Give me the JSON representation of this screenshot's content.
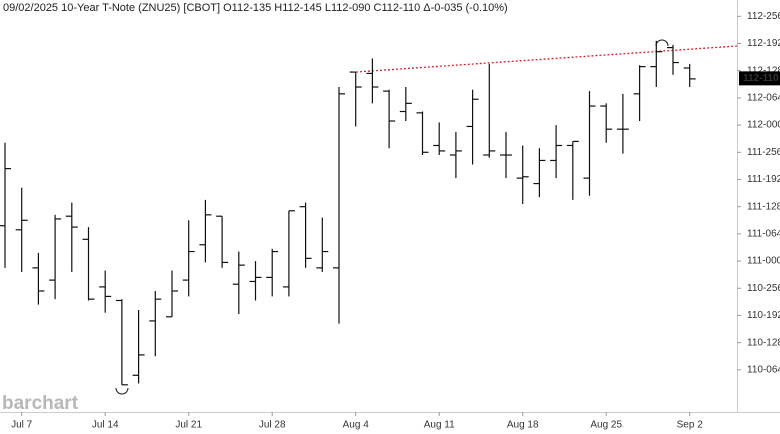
{
  "chart_data": {
    "type": "ohlc",
    "title": "09/02/2025 10-Year T-Note (ZNU25) [CBOT] O112-135 H112-145 L112-090 C112-110 Δ-0-035 (-0.10%)",
    "watermark": "barchart",
    "categories": [
      null,
      "Jul 7",
      null,
      null,
      null,
      null,
      "Jul 14",
      null,
      null,
      null,
      null,
      "Jul 21",
      null,
      null,
      null,
      null,
      "Jul 28",
      null,
      null,
      null,
      null,
      "Aug 4",
      null,
      null,
      null,
      null,
      "Aug 11",
      null,
      null,
      null,
      null,
      "Aug 18",
      null,
      null,
      null,
      null,
      "Aug 25",
      null,
      null,
      null,
      null,
      "Sep 2"
    ],
    "open": [
      111.26,
      111.23,
      110.95,
      110.86,
      111.33,
      111.16,
      110.81,
      110.71,
      110.16,
      110.56,
      110.59,
      110.86,
      111.12,
      111.33,
      110.83,
      110.85,
      110.88,
      110.81,
      111.4,
      110.95,
      110.95,
      112.39,
      112.38,
      112.25,
      112.1,
      112.09,
      111.85,
      111.78,
      111.99,
      111.78,
      111.78,
      111.61,
      111.57,
      111.74,
      111.85,
      111.61,
      112.14,
      111.97,
      112.23,
      112.43,
      112.57,
      112.42
    ],
    "high": [
      111.87,
      111.54,
      111.06,
      111.34,
      111.43,
      111.25,
      110.93,
      110.72,
      110.64,
      110.78,
      110.93,
      111.3,
      111.45,
      111.33,
      111.07,
      111.0,
      111.09,
      111.37,
      111.43,
      111.32,
      112.28,
      112.39,
      112.49,
      112.26,
      112.28,
      112.1,
      112.02,
      111.95,
      112.26,
      112.45,
      111.95,
      111.85,
      111.83,
      112.0,
      111.88,
      112.25,
      112.16,
      112.23,
      112.44,
      112.62,
      112.59,
      112.45
    ],
    "low": [
      110.95,
      110.92,
      110.68,
      110.72,
      110.92,
      110.71,
      110.62,
      110.09,
      110.1,
      110.3,
      110.59,
      110.74,
      110.99,
      110.95,
      110.61,
      110.71,
      110.74,
      110.74,
      110.95,
      110.92,
      110.54,
      111.99,
      112.16,
      111.83,
      112.03,
      111.78,
      111.78,
      111.61,
      111.71,
      111.76,
      111.61,
      111.42,
      111.47,
      111.61,
      111.45,
      111.48,
      111.87,
      111.79,
      112.03,
      112.28,
      112.37,
      112.28
    ],
    "close": [
      111.68,
      111.3,
      110.78,
      111.31,
      111.25,
      110.72,
      110.74,
      110.09,
      110.31,
      110.72,
      110.78,
      111.07,
      111.34,
      110.99,
      110.97,
      110.88,
      111.07,
      111.37,
      111.02,
      111.07,
      112.23,
      112.28,
      112.28,
      112.03,
      112.16,
      111.8,
      111.81,
      111.81,
      112.19,
      111.81,
      111.78,
      111.62,
      111.74,
      111.85,
      111.88,
      112.14,
      111.97,
      111.97,
      112.43,
      112.54,
      112.46,
      112.34
    ],
    "color": "#111111",
    "ylim": [
      109.89,
      112.92
    ],
    "yticks": [
      {
        "value": 112.8,
        "label": "112-256"
      },
      {
        "value": 112.6,
        "label": "112-192"
      },
      {
        "value": 112.4,
        "label": "112-128"
      },
      {
        "value": 112.2,
        "label": "112-064"
      },
      {
        "value": 112.0,
        "label": "112-000"
      },
      {
        "value": 111.8,
        "label": "111-256"
      },
      {
        "value": 111.6,
        "label": "111-192"
      },
      {
        "value": 111.4,
        "label": "111-128"
      },
      {
        "value": 111.2,
        "label": "111-064"
      },
      {
        "value": 111.0,
        "label": "111-000"
      },
      {
        "value": 110.8,
        "label": "110-256"
      },
      {
        "value": 110.6,
        "label": "110-192"
      },
      {
        "value": 110.4,
        "label": "110-128"
      },
      {
        "value": 110.2,
        "label": "110-064"
      }
    ],
    "last_price": {
      "value": 112.34375,
      "label": "112-110"
    },
    "grid": false
  }
}
